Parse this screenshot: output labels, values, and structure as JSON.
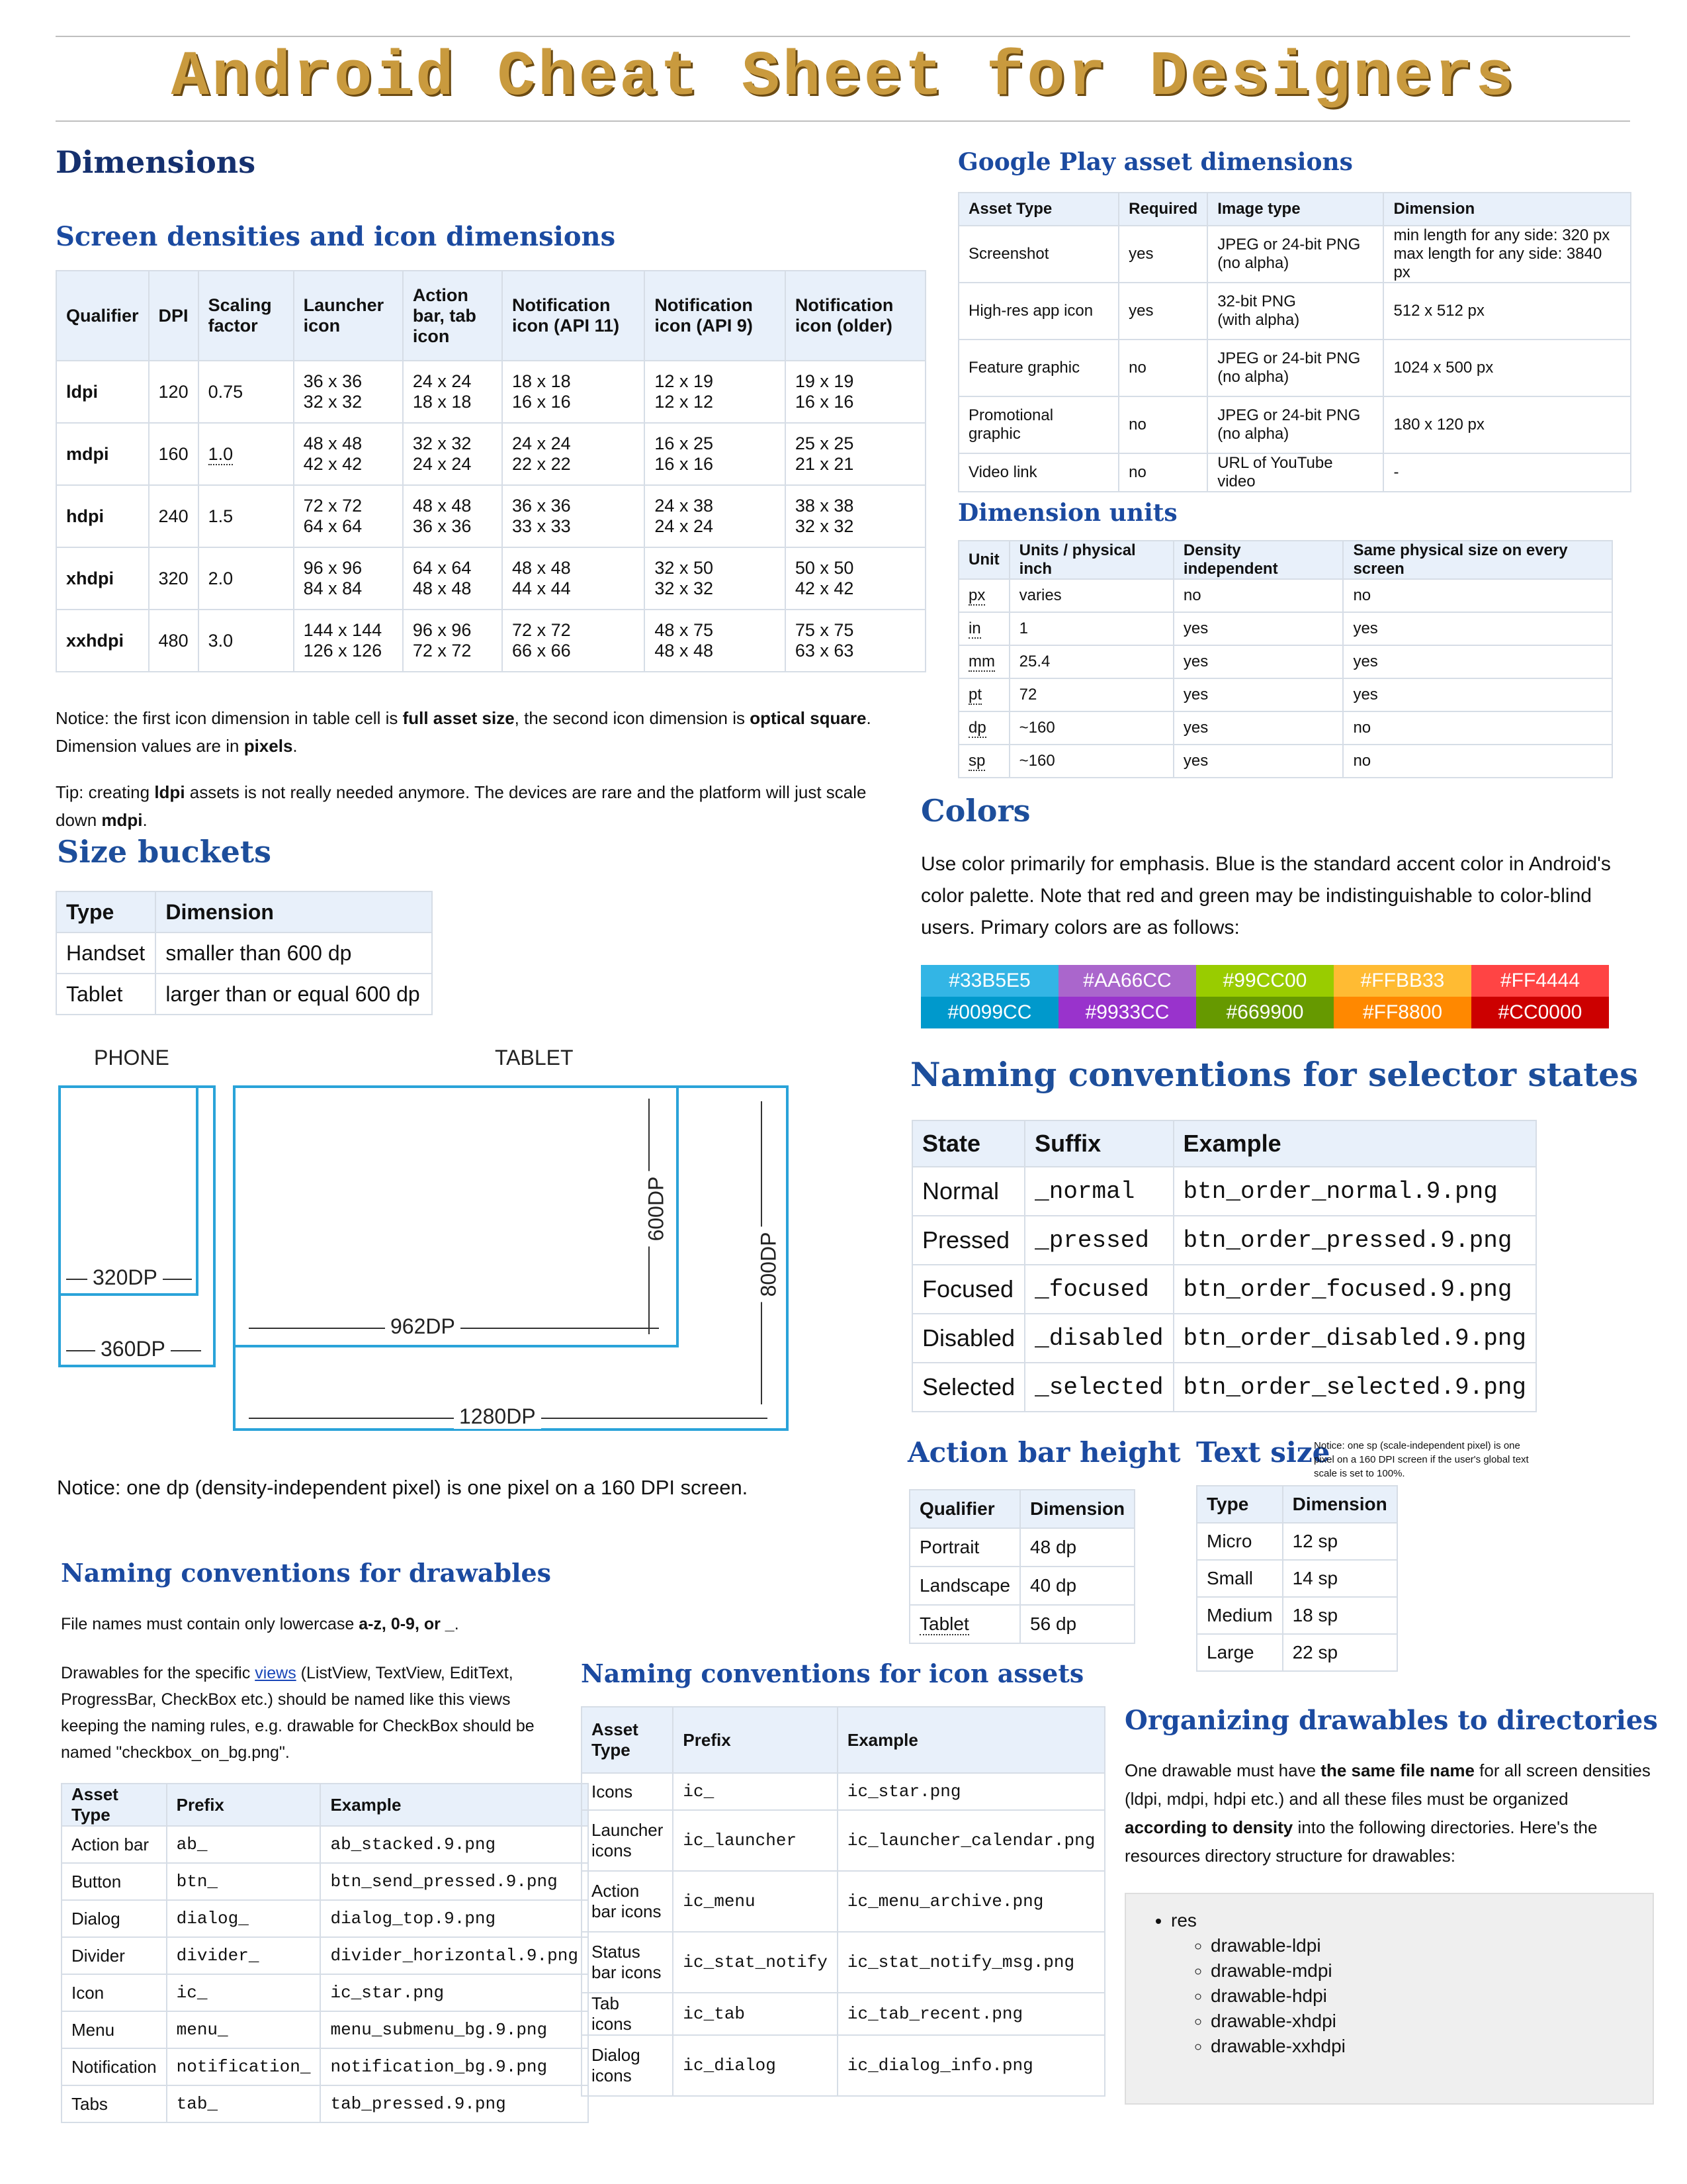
{
  "title": "Android Cheat Sheet for Designers",
  "dimensions": {
    "heading": "Dimensions",
    "screen_densities": {
      "heading": "Screen densities and icon dimensions",
      "headers": [
        "Qualifier",
        "DPI",
        "Scaling factor",
        "Launcher icon",
        "Action bar, tab icon",
        "Notification icon (API 11)",
        "Notification icon (API 9)",
        "Notification icon (older)"
      ],
      "rows": [
        [
          "ldpi",
          "120",
          "0.75",
          "36 x 36\n32 x 32",
          "24 x 24\n18 x 18",
          "18 x 18\n16 x 16",
          "12 x 19\n12 x 12",
          "19 x 19\n16 x 16"
        ],
        [
          "mdpi",
          "160",
          "1.0",
          "48 x 48\n42 x 42",
          "32 x 32\n24 x 24",
          "24 x 24\n22 x 22",
          "16 x 25\n16 x 16",
          "25 x 25\n21 x 21"
        ],
        [
          "hdpi",
          "240",
          "1.5",
          "72 x 72\n64 x 64",
          "48 x 48\n36 x 36",
          "36 x 36\n33 x 33",
          "24 x 38\n24 x 24",
          "38 x 38\n32 x 32"
        ],
        [
          "xhdpi",
          "320",
          "2.0",
          "96 x 96\n84 x 84",
          "64 x 64\n48 x 48",
          "48 x 48\n44 x 44",
          "32 x 50\n32 x 32",
          "50 x 50\n42 x 42"
        ],
        [
          "xxhdpi",
          "480",
          "3.0",
          "144 x 144\n126 x 126",
          "96 x 96\n72 x 72",
          "72 x 72\n66 x 66",
          "48 x 75\n48 x 48",
          "75 x 75\n63 x 63"
        ]
      ],
      "notice_1": "Notice: the first icon dimension in table cell is ",
      "notice_b1": "full asset size",
      "notice_2": ", the second icon dimension is ",
      "notice_b2": "optical square",
      "notice_3": ".",
      "notice_4": "Dimension values are in ",
      "notice_b3": "pixels",
      "notice_5": ".",
      "tip_1": "Tip: creating ",
      "tip_b1": "ldpi",
      "tip_2": " assets is not really needed anymore. The devices are rare and the platform will just scale down ",
      "tip_b2": "mdpi",
      "tip_3": "."
    }
  },
  "size_buckets": {
    "heading": "Size buckets",
    "headers": [
      "Type",
      "Dimension"
    ],
    "rows": [
      [
        "Handset",
        "smaller than 600 dp"
      ],
      [
        "Tablet",
        "larger than or equal 600 dp"
      ]
    ],
    "phone_label": "PHONE",
    "tablet_label": "TABLET",
    "phone_inner": "320DP",
    "phone_outer": "360DP",
    "tablet_inner_w": "962DP",
    "tablet_inner_h": "600DP",
    "tablet_outer_w": "1280DP",
    "tablet_outer_h": "800DP",
    "notice": "Notice: one dp (density-independent pixel) is one pixel on a 160 DPI screen."
  },
  "google_play": {
    "heading": "Google Play asset dimensions",
    "headers": [
      "Asset Type",
      "Required",
      "Image type",
      "Dimension"
    ],
    "rows": [
      [
        "Screenshot",
        "yes",
        "JPEG or 24-bit PNG\n(no alpha)",
        "min length for any side: 320 px\nmax length for any side: 3840 px"
      ],
      [
        "High-res app icon",
        "yes",
        "32-bit PNG\n(with alpha)",
        "512 x 512 px"
      ],
      [
        "Feature graphic",
        "no",
        "JPEG or 24-bit PNG\n(no alpha)",
        "1024 x 500 px"
      ],
      [
        "Promotional graphic",
        "no",
        "JPEG or 24-bit PNG\n(no alpha)",
        "180 x 120 px"
      ],
      [
        "Video link",
        "no",
        "URL of YouTube video",
        "-"
      ]
    ]
  },
  "dimension_units": {
    "heading": "Dimension units",
    "headers": [
      "Unit",
      "Units / physical inch",
      "Density independent",
      "Same physical size on every screen"
    ],
    "rows": [
      [
        "px",
        "varies",
        "no",
        "no"
      ],
      [
        "in",
        "1",
        "yes",
        "yes"
      ],
      [
        "mm",
        "25.4",
        "yes",
        "yes"
      ],
      [
        "pt",
        "72",
        "yes",
        "yes"
      ],
      [
        "dp",
        "~160",
        "yes",
        "no"
      ],
      [
        "sp",
        "~160",
        "yes",
        "no"
      ]
    ]
  },
  "colors": {
    "heading": "Colors",
    "text": "Use color primarily for emphasis. Blue is the standard accent color in Android's color palette. Note that red and green may be indistinguishable to color-blind users. Primary colors are as follows:",
    "swatches": [
      {
        "label": "#33B5E5",
        "color": "#33B5E5"
      },
      {
        "label": "#AA66CC",
        "color": "#AA66CC"
      },
      {
        "label": "#99CC00",
        "color": "#99CC00"
      },
      {
        "label": "#FFBB33",
        "color": "#FFBB33"
      },
      {
        "label": "#FF4444",
        "color": "#FF4444"
      },
      {
        "label": "#0099CC",
        "color": "#0099CC"
      },
      {
        "label": "#9933CC",
        "color": "#9933CC"
      },
      {
        "label": "#669900",
        "color": "#669900"
      },
      {
        "label": "#FF8800",
        "color": "#FF8800"
      },
      {
        "label": "#CC0000",
        "color": "#CC0000"
      }
    ]
  },
  "selector_states": {
    "heading": "Naming conventions for selector states",
    "headers": [
      "State",
      "Suffix",
      "Example"
    ],
    "rows": [
      [
        "Normal",
        "_normal",
        "btn_order_normal.9.png"
      ],
      [
        "Pressed",
        "_pressed",
        "btn_order_pressed.9.png"
      ],
      [
        "Focused",
        "_focused",
        "btn_order_focused.9.png"
      ],
      [
        "Disabled",
        "_disabled",
        "btn_order_disabled.9.png"
      ],
      [
        "Selected",
        "_selected",
        "btn_order_selected.9.png"
      ]
    ]
  },
  "action_bar_height": {
    "heading": "Action bar height",
    "headers": [
      "Qualifier",
      "Dimension"
    ],
    "rows": [
      [
        "Portrait",
        "48 dp"
      ],
      [
        "Landscape",
        "40 dp"
      ],
      [
        "Tablet",
        "56 dp"
      ]
    ]
  },
  "text_size": {
    "heading": "Text size",
    "notice": "Notice: one sp (scale-independent pixel) is one pixel on a 160 DPI screen if the user's global text scale is set to 100%.",
    "headers": [
      "Type",
      "Dimension"
    ],
    "rows": [
      [
        "Micro",
        "12 sp"
      ],
      [
        "Small",
        "14 sp"
      ],
      [
        "Medium",
        "18 sp"
      ],
      [
        "Large",
        "22 sp"
      ]
    ]
  },
  "drawables": {
    "heading": "Naming conventions for drawables",
    "p1_a": "File names must contain only lowercase ",
    "p1_b": "a-z, 0-9, or _",
    "p1_c": ".",
    "p2_a": "Drawables for the specific ",
    "p2_link": "views",
    "p2_b": " (ListView, TextView, EditText, ProgressBar, CheckBox etc.) should be named like this views keeping the naming rules, e.g. drawable for CheckBox should be named \"checkbox_on_bg.png\".",
    "headers": [
      "Asset Type",
      "Prefix",
      "Example"
    ],
    "rows": [
      [
        "Action bar",
        "ab_",
        "ab_stacked.9.png"
      ],
      [
        "Button",
        "btn_",
        "btn_send_pressed.9.png"
      ],
      [
        "Dialog",
        "dialog_",
        "dialog_top.9.png"
      ],
      [
        "Divider",
        "divider_",
        "divider_horizontal.9.png"
      ],
      [
        "Icon",
        "ic_",
        "ic_star.png"
      ],
      [
        "Menu",
        "menu_",
        "menu_submenu_bg.9.png"
      ],
      [
        "Notification",
        "notification_",
        "notification_bg.9.png"
      ],
      [
        "Tabs",
        "tab_",
        "tab_pressed.9.png"
      ]
    ]
  },
  "icon_assets": {
    "heading": "Naming conventions for icon assets",
    "headers": [
      "Asset Type",
      "Prefix",
      "Example"
    ],
    "rows": [
      [
        "Icons",
        "ic_",
        "ic_star.png"
      ],
      [
        "Launcher icons",
        "ic_launcher",
        "ic_launcher_calendar.png"
      ],
      [
        "Action bar icons",
        "ic_menu",
        "ic_menu_archive.png"
      ],
      [
        "Status bar icons",
        "ic_stat_notify",
        "ic_stat_notify_msg.png"
      ],
      [
        "Tab icons",
        "ic_tab",
        "ic_tab_recent.png"
      ],
      [
        "Dialog icons",
        "ic_dialog",
        "ic_dialog_info.png"
      ]
    ]
  },
  "organizing": {
    "heading": "Organizing drawables to directories",
    "p_a": "One drawable must have ",
    "p_b": "the same file name",
    "p_c": " for all screen densities (ldpi, mdpi, hdpi etc.) and all these files must be organized ",
    "p_d": "according to density",
    "p_e": " into the following directories. Here's the resources directory structure for drawables:",
    "root": "res",
    "dirs": [
      "drawable-ldpi",
      "drawable-mdpi",
      "drawable-hdpi",
      "drawable-xhdpi",
      "drawable-xxhdpi"
    ]
  }
}
